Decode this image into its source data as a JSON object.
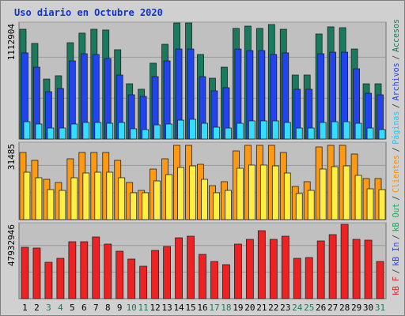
{
  "chart_data": [
    {
      "type": "bar",
      "title": "Uso diario en Octubre 2020",
      "ylim": [
        0,
        1112904
      ],
      "yticks": [
        1112904
      ],
      "legend": [
        {
          "text": "kB F",
          "color": "#e02020"
        },
        {
          "text": "kB In",
          "color": "#2244ee"
        },
        {
          "text": "kB Out",
          "color": "#11aa55"
        },
        {
          "text": "Clientes",
          "color": "#ff8c00"
        },
        {
          "text": "Páginas",
          "color": "#22c8ee"
        },
        {
          "text": "Archivos",
          "color": "#2244ee"
        },
        {
          "text": "Accesos",
          "color": "#1a7a5e"
        }
      ],
      "legend_separator": "/",
      "series": [
        {
          "color": "#1a7a5e",
          "values": [
            1045000,
            910000,
            571000,
            602000,
            917000,
            1008000,
            1045000,
            1038000,
            850000,
            526000,
            474000,
            722000,
            902000,
            1105000,
            1105000,
            805000,
            579000,
            684000,
            1053000,
            1075000,
            1053000,
            1090000,
            1045000,
            609000,
            609000,
            1000000,
            1068000,
            1060000,
            857000,
            526000,
            526000
          ]
        },
        {
          "color": "#2244ee",
          "values": [
            820000,
            684000,
            451000,
            481000,
            744000,
            812000,
            805000,
            767000,
            609000,
            421000,
            406000,
            594000,
            744000,
            857000,
            857000,
            594000,
            459000,
            489000,
            857000,
            842000,
            842000,
            805000,
            820000,
            474000,
            474000,
            812000,
            827000,
            827000,
            669000,
            436000,
            421000
          ]
        },
        {
          "color": "#33ddff",
          "values": [
            165000,
            143000,
            105000,
            105000,
            143000,
            158000,
            158000,
            150000,
            158000,
            98000,
            90000,
            135000,
            143000,
            180000,
            188000,
            150000,
            113000,
            105000,
            150000,
            173000,
            173000,
            173000,
            158000,
            105000,
            105000,
            158000,
            165000,
            165000,
            150000,
            105000,
            90000
          ]
        }
      ]
    },
    {
      "type": "bar",
      "ylim": [
        0,
        31485
      ],
      "yticks": [
        31485
      ],
      "series": [
        {
          "color": "#ff9911",
          "values": [
            27311,
            24098,
            16386,
            15101,
            24740,
            27311,
            27311,
            27311,
            24098,
            15101,
            11888,
            20563,
            24740,
            30202,
            30202,
            22491,
            13816,
            15422,
            27953,
            30202,
            30202,
            30202,
            27311,
            13495,
            15422,
            29560,
            30202,
            30202,
            26668,
            16708,
            16708
          ]
        },
        {
          "color": "#ffee44",
          "values": [
            19278,
            17029,
            12209,
            11888,
            17029,
            18957,
            19278,
            19278,
            17029,
            10924,
            10924,
            15744,
            18314,
            21206,
            21848,
            16386,
            10924,
            11888,
            20885,
            22170,
            22170,
            21848,
            18957,
            10603,
            11888,
            20563,
            21527,
            21848,
            17993,
            12531,
            12209
          ]
        }
      ]
    },
    {
      "type": "bar",
      "ylim": [
        0,
        47932946
      ],
      "yticks": [
        47932946
      ],
      "categories": [
        "1",
        "2",
        "3",
        "4",
        "5",
        "6",
        "7",
        "8",
        "9",
        "10",
        "11",
        "12",
        "13",
        "14",
        "15",
        "16",
        "17",
        "18",
        "19",
        "20",
        "21",
        "22",
        "23",
        "24",
        "25",
        "26",
        "27",
        "28",
        "29",
        "30",
        "31"
      ],
      "label_colors": [
        "#000000",
        "#000000",
        "#1a7a5e",
        "#1a7a5e",
        "#000000",
        "#000000",
        "#000000",
        "#000000",
        "#000000",
        "#1a7a5e",
        "#1a7a5e",
        "#000000",
        "#000000",
        "#000000",
        "#000000",
        "#000000",
        "#1a7a5e",
        "#1a7a5e",
        "#000000",
        "#000000",
        "#000000",
        "#000000",
        "#000000",
        "#1a7a5e",
        "#1a7a5e",
        "#000000",
        "#000000",
        "#000000",
        "#000000",
        "#000000",
        "#1a7a5e"
      ],
      "series": [
        {
          "color": "#ee2222",
          "values": [
            32450000,
            31960000,
            22970000,
            25460000,
            35950000,
            35950000,
            38950000,
            34450000,
            29960000,
            24970000,
            20470000,
            30460000,
            32950000,
            38450000,
            39440000,
            27960000,
            23470000,
            21470000,
            34450000,
            37450000,
            42940000,
            37450000,
            39440000,
            25460000,
            25960000,
            36450000,
            40440000,
            46930000,
            37450000,
            36950000,
            23470000
          ]
        }
      ]
    }
  ]
}
